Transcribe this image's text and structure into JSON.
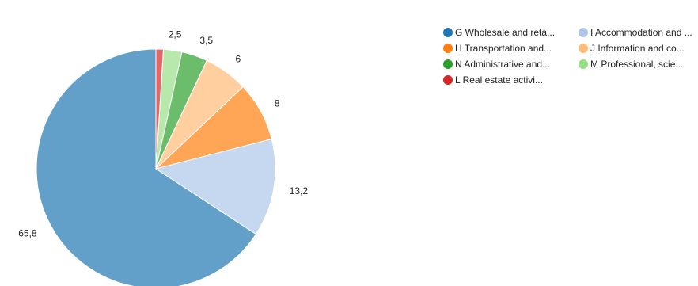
{
  "chart_data": {
    "type": "pie",
    "categories": [
      "G Wholesale and reta...",
      "I Accommodation and ...",
      "H Transportation and...",
      "J Information and co...",
      "N Administrative and...",
      "M Professional, scie...",
      "L Real estate activi..."
    ],
    "values": [
      65.8,
      13.2,
      8,
      6,
      3.5,
      2.5,
      1
    ],
    "value_labels": [
      "65,8",
      "13,2",
      "8",
      "6",
      "3,5",
      "2,5",
      ""
    ],
    "colors": [
      "#1f77b4",
      "#aec7e8",
      "#ff7f0e",
      "#ffbb78",
      "#2ca02c",
      "#98df8a",
      "#d62728"
    ],
    "slice_opacity": 0.7,
    "direction": "counterclockwise",
    "legend": {
      "placement": "top-right",
      "columns": 2,
      "marker": "circle"
    }
  }
}
